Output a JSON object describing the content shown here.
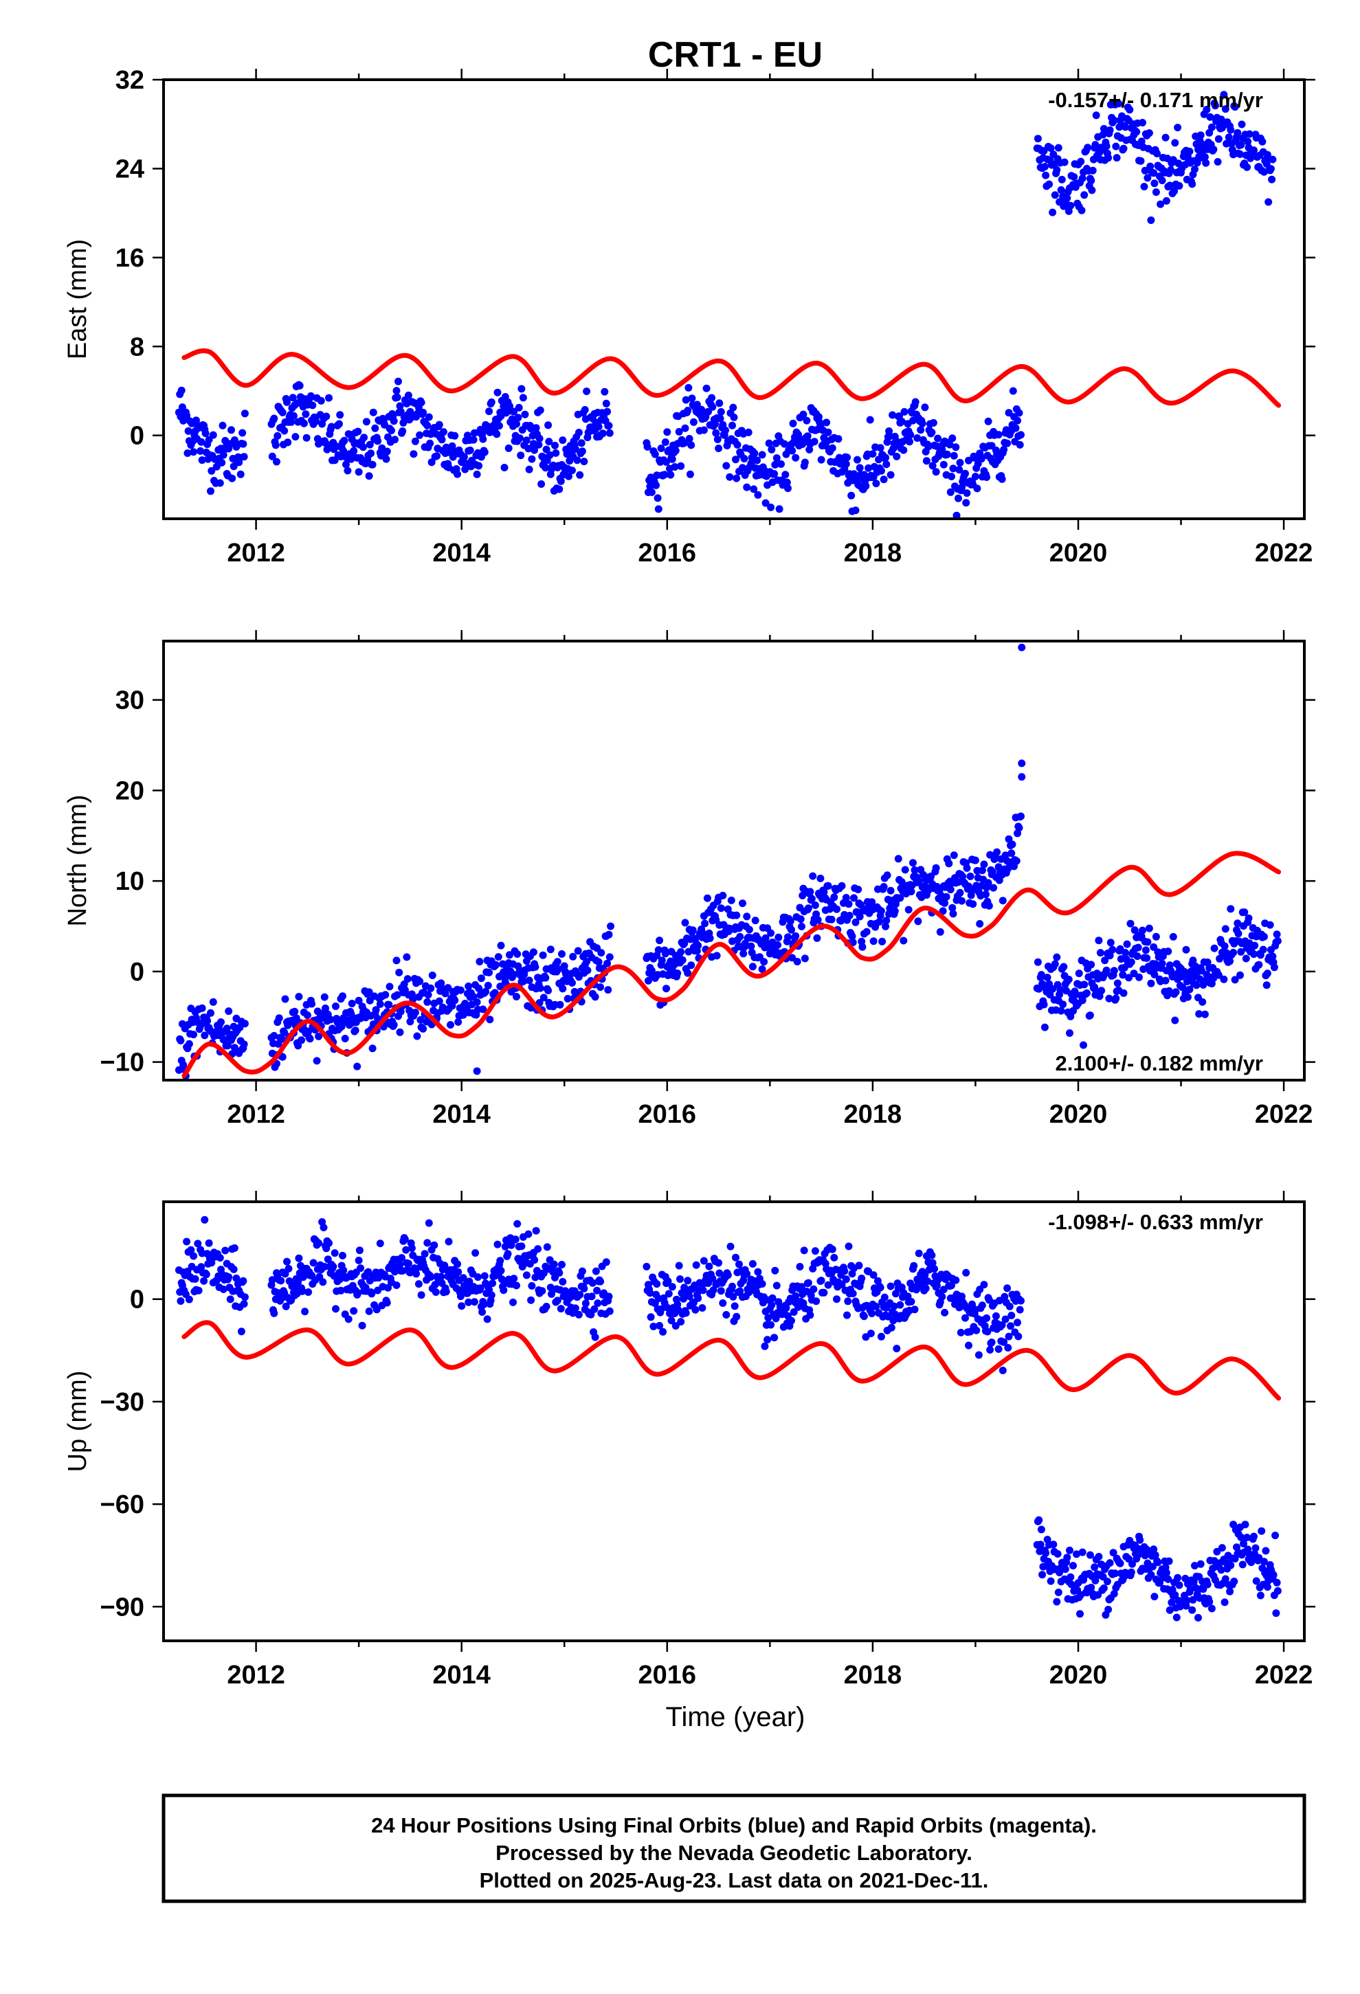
{
  "title": "CRT1 - EU",
  "colors": {
    "observed": "#0000ff",
    "model": "#ff0000",
    "axis": "#000000"
  },
  "xlabel": "Time (year)",
  "footer": {
    "line1": "24 Hour Positions Using Final Orbits (blue) and Rapid Orbits (magenta).",
    "line2": "Processed by the Nevada Geodetic Laboratory.",
    "line3": "Plotted on 2025-Aug-23. Last data on 2021-Dec-11."
  },
  "chart_data": [
    {
      "type": "scatter",
      "name": "east",
      "ylabel": "East (mm)",
      "xlim": [
        2011.1,
        2022.2
      ],
      "ylim": [
        -7.5,
        32
      ],
      "xticks": [
        2012,
        2014,
        2016,
        2018,
        2020,
        2022
      ],
      "xtick_labels": [
        "2012",
        "2014",
        "2016",
        "2018",
        "2020",
        "2022"
      ],
      "yticks": [
        0,
        8,
        16,
        24,
        32
      ],
      "ytick_labels": [
        "0",
        "8",
        "16",
        "24",
        "32"
      ],
      "rate_label": "-0.157+/- 0.171 mm/yr",
      "rate_position": "top-right",
      "model": {
        "x": [
          2011.3,
          2011.55,
          2011.9,
          2012.35,
          2012.9,
          2013.45,
          2013.9,
          2014.5,
          2014.9,
          2015.45,
          2015.9,
          2016.5,
          2016.9,
          2017.45,
          2017.9,
          2018.5,
          2018.9,
          2019.45,
          2019.9,
          2020.45,
          2020.9,
          2021.5,
          2021.95
        ],
        "y": [
          7.0,
          7.5,
          4.5,
          7.3,
          4.3,
          7.2,
          4.0,
          7.1,
          3.8,
          6.9,
          3.6,
          6.7,
          3.4,
          6.5,
          3.3,
          6.4,
          3.1,
          6.2,
          3.0,
          6.0,
          2.9,
          5.8,
          2.7
        ]
      },
      "observed": {
        "segments": [
          {
            "x": [
              2011.25,
              2011.35,
              2011.5,
              2011.65,
              2011.8,
              2011.9
            ],
            "y": [
              2.5,
              1.0,
              -1.0,
              -2.0,
              -1.5,
              0.0
            ]
          },
          {
            "x": [
              2012.15,
              2012.35,
              2012.6,
              2012.8,
              2013.0,
              2013.2,
              2013.4,
              2013.6,
              2013.8,
              2014.0,
              2014.2,
              2014.4,
              2014.6,
              2014.8,
              2015.0,
              2015.2,
              2015.45
            ],
            "y": [
              -1.0,
              3.0,
              1.0,
              -1.0,
              -2.0,
              -0.5,
              2.5,
              1.0,
              -1.0,
              -2.0,
              0.0,
              2.0,
              1.0,
              -2.0,
              -3.0,
              0.0,
              2.0
            ]
          },
          {
            "x": [
              2015.8,
              2016.0,
              2016.2,
              2016.4,
              2016.6,
              2016.8,
              2017.0,
              2017.2,
              2017.4,
              2017.6,
              2017.8,
              2018.0,
              2018.2,
              2018.4,
              2018.6,
              2018.8,
              2019.0,
              2019.2,
              2019.45
            ],
            "y": [
              -3.5,
              -2.0,
              1.0,
              2.5,
              0.0,
              -2.5,
              -4.0,
              -2.0,
              1.0,
              -1.0,
              -4.0,
              -3.0,
              -1.0,
              1.0,
              -1.0,
              -3.5,
              -4.0,
              -1.0,
              1.5
            ]
          },
          {
            "x": [
              2019.6,
              2019.75,
              2019.9,
              2020.1,
              2020.3,
              2020.5,
              2020.7,
              2020.9,
              2021.1,
              2021.3,
              2021.5,
              2021.7,
              2021.9
            ],
            "y": [
              26.0,
              24.0,
              22.0,
              24.0,
              28.0,
              27.5,
              25.0,
              23.0,
              24.0,
              28.0,
              27.0,
              25.0,
              23.5
            ]
          }
        ]
      }
    },
    {
      "type": "scatter",
      "name": "north",
      "ylabel": "North (mm)",
      "xlim": [
        2011.1,
        2022.2
      ],
      "ylim": [
        -12,
        36.5
      ],
      "xticks": [
        2012,
        2014,
        2016,
        2018,
        2020,
        2022
      ],
      "xtick_labels": [
        "2012",
        "2014",
        "2016",
        "2018",
        "2020",
        "2022"
      ],
      "yticks": [
        -10,
        0,
        10,
        20,
        30
      ],
      "ytick_labels": [
        "−10",
        "0",
        "10",
        "20",
        "30"
      ],
      "rate_label": "2.100+/- 0.182 mm/yr",
      "rate_position": "bottom-right",
      "model": {
        "x": [
          2011.3,
          2011.55,
          2011.9,
          2012.15,
          2012.5,
          2012.9,
          2013.45,
          2013.9,
          2014.15,
          2014.5,
          2014.9,
          2015.5,
          2015.9,
          2016.15,
          2016.5,
          2016.9,
          2017.5,
          2017.9,
          2018.15,
          2018.5,
          2018.9,
          2019.15,
          2019.5,
          2019.9,
          2020.5,
          2020.9,
          2021.5,
          2021.95
        ],
        "y": [
          -11.5,
          -8.0,
          -11.0,
          -10.0,
          -5.5,
          -9.0,
          -3.5,
          -7.0,
          -6.0,
          -1.5,
          -5.0,
          0.5,
          -3.0,
          -2.0,
          3.0,
          -0.5,
          5.0,
          1.5,
          2.5,
          7.0,
          4.0,
          5.0,
          9.0,
          6.5,
          11.5,
          8.5,
          13.0,
          11.0
        ]
      },
      "observed": {
        "segments": [
          {
            "x": [
              2011.25,
              2011.35,
              2011.5,
              2011.65,
              2011.8,
              2011.9
            ],
            "y": [
              -10.0,
              -7.0,
              -5.5,
              -7.0,
              -7.5,
              -7.0
            ]
          },
          {
            "x": [
              2012.15,
              2012.4,
              2012.6,
              2012.8,
              2013.0,
              2013.2,
              2013.45,
              2013.7,
              2013.9,
              2014.1,
              2014.4,
              2014.6,
              2014.8,
              2015.0,
              2015.2,
              2015.45
            ],
            "y": [
              -8.0,
              -5.5,
              -5.0,
              -6.0,
              -5.5,
              -4.5,
              -2.0,
              -3.5,
              -4.0,
              -3.5,
              -1.0,
              -0.5,
              -1.5,
              -1.0,
              -0.5,
              2.0
            ]
          },
          {
            "x": [
              2015.8,
              2016.0,
              2016.2,
              2016.4,
              2016.6,
              2016.8,
              2017.0,
              2017.2,
              2017.5,
              2017.7,
              2017.9,
              2018.1,
              2018.4,
              2018.6,
              2018.8,
              2019.0,
              2019.2,
              2019.35,
              2019.45
            ],
            "y": [
              0.0,
              0.0,
              2.0,
              5.5,
              5.0,
              3.0,
              3.0,
              4.0,
              8.0,
              7.0,
              6.0,
              6.5,
              9.5,
              10.0,
              9.0,
              9.5,
              10.5,
              13.0,
              17.0
            ]
          },
          {
            "x": [
              2019.6,
              2019.8,
              2020.0,
              2020.2,
              2020.4,
              2020.6,
              2020.8,
              2021.0,
              2021.2,
              2021.4,
              2021.6,
              2021.8,
              2021.95
            ],
            "y": [
              -1.0,
              -2.0,
              -2.0,
              -1.0,
              1.0,
              2.0,
              1.0,
              -1.0,
              -1.0,
              1.0,
              4.0,
              2.0,
              1.5
            ]
          }
        ],
        "extra_points": {
          "x": [
            2014.15,
            2019.45,
            2019.45,
            2019.45,
            2015.45
          ],
          "y": [
            -11.0,
            35.8,
            23.0,
            21.5,
            5.0
          ]
        }
      }
    },
    {
      "type": "scatter",
      "name": "up",
      "ylabel": "Up (mm)",
      "xlim": [
        2011.1,
        2022.2
      ],
      "ylim": [
        -100,
        28.5
      ],
      "xticks": [
        2012,
        2014,
        2016,
        2018,
        2020,
        2022
      ],
      "xtick_labels": [
        "2012",
        "2014",
        "2016",
        "2018",
        "2020",
        "2022"
      ],
      "yticks": [
        -90,
        -60,
        -30,
        0
      ],
      "ytick_labels": [
        "−90",
        "−60",
        "−30",
        "0"
      ],
      "rate_label": "-1.098+/- 0.633 mm/yr",
      "rate_position": "top-right",
      "model": {
        "x": [
          2011.3,
          2011.55,
          2011.9,
          2012.5,
          2012.9,
          2013.5,
          2013.9,
          2014.5,
          2014.9,
          2015.5,
          2015.9,
          2016.5,
          2016.9,
          2017.5,
          2017.9,
          2018.5,
          2018.9,
          2019.5,
          2019.95,
          2020.5,
          2020.95,
          2021.5,
          2021.95
        ],
        "y": [
          -11.0,
          -7.0,
          -17.0,
          -9.0,
          -19.0,
          -9.0,
          -20.0,
          -10.0,
          -21.0,
          -11.0,
          -22.0,
          -12.0,
          -23.0,
          -13.0,
          -24.0,
          -14.0,
          -25.0,
          -15.0,
          -26.5,
          -16.5,
          -27.5,
          -17.5,
          -29.0
        ]
      },
      "observed": {
        "segments": [
          {
            "x": [
              2011.25,
              2011.35,
              2011.5,
              2011.65,
              2011.8,
              2011.9
            ],
            "y": [
              3.0,
              8.0,
              11.0,
              8.0,
              3.0,
              0.0
            ]
          },
          {
            "x": [
              2012.15,
              2012.35,
              2012.6,
              2012.8,
              2013.0,
              2013.2,
              2013.45,
              2013.6,
              2013.8,
              2014.0,
              2014.2,
              2014.4,
              2014.6,
              2014.8,
              2015.0,
              2015.2,
              2015.45
            ],
            "y": [
              2.0,
              4.0,
              11.0,
              8.0,
              4.0,
              3.0,
              10.0,
              11.0,
              6.0,
              4.0,
              3.0,
              8.0,
              12.0,
              6.0,
              2.0,
              2.0,
              3.0
            ]
          },
          {
            "x": [
              2015.8,
              2016.0,
              2016.2,
              2016.4,
              2016.6,
              2016.8,
              2017.0,
              2017.2,
              2017.4,
              2017.6,
              2017.8,
              2018.0,
              2018.2,
              2018.4,
              2018.6,
              2018.8,
              2019.0,
              2019.2,
              2019.45
            ],
            "y": [
              1.0,
              -2.0,
              2.0,
              5.0,
              6.0,
              2.0,
              -5.0,
              -3.0,
              4.0,
              7.0,
              3.0,
              -2.0,
              -4.0,
              3.0,
              7.0,
              2.0,
              -5.0,
              -7.0,
              -3.0
            ]
          },
          {
            "x": [
              2019.6,
              2019.8,
              2020.0,
              2020.2,
              2020.4,
              2020.6,
              2020.8,
              2021.0,
              2021.2,
              2021.4,
              2021.6,
              2021.8,
              2021.95
            ],
            "y": [
              -72.0,
              -78.0,
              -84.0,
              -82.0,
              -78.0,
              -75.0,
              -80.0,
              -87.0,
              -85.0,
              -78.0,
              -72.0,
              -78.0,
              -83.0
            ]
          }
        ]
      }
    }
  ]
}
